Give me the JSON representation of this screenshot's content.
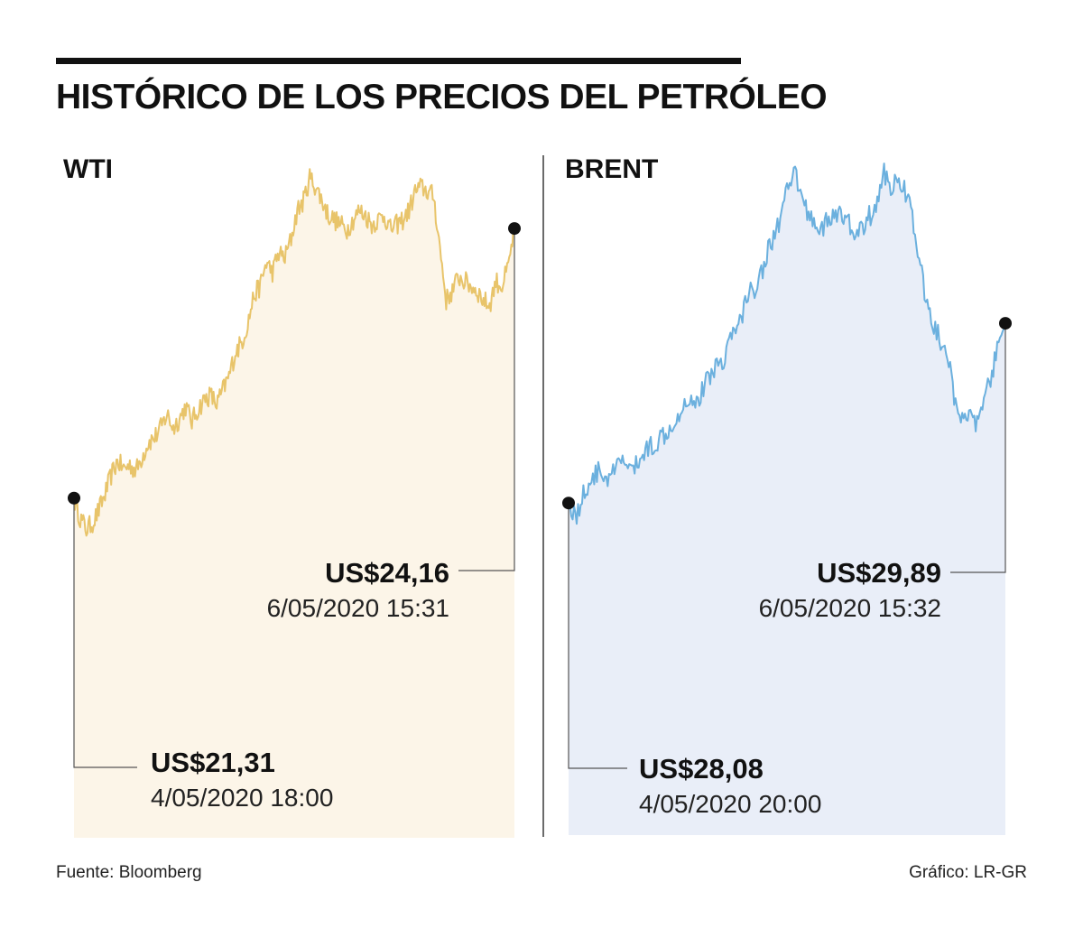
{
  "title": "HISTÓRICO DE LOS PRECIOS DEL PETRÓLEO",
  "footer": {
    "source": "Fuente: Bloomberg",
    "credit": "Gráfico: LR-GR"
  },
  "chart_data": [
    {
      "type": "area",
      "title": "WTI",
      "unit": "US$",
      "line_color": "#e8c46a",
      "fill_color": "#fcf5e8",
      "ylim": [
        19.8,
        24.8
      ],
      "start": {
        "label": "US$21,31",
        "date": "4/05/2020 18:00",
        "value": 21.31
      },
      "end": {
        "label": "US$24,16",
        "date": "6/05/2020 15:31",
        "value": 24.16
      },
      "values": [
        21.31,
        21.1,
        20.98,
        21.05,
        21.18,
        21.35,
        21.55,
        21.7,
        21.62,
        21.66,
        21.6,
        21.75,
        21.9,
        21.95,
        22.05,
        22.2,
        22.05,
        22.15,
        22.28,
        22.12,
        22.25,
        22.35,
        22.4,
        22.3,
        22.45,
        22.6,
        22.85,
        22.95,
        23.15,
        23.45,
        23.55,
        23.8,
        23.7,
        23.9,
        23.85,
        24.05,
        24.35,
        24.45,
        24.7,
        24.6,
        24.45,
        24.3,
        24.25,
        24.2,
        24.15,
        24.25,
        24.35,
        24.3,
        24.2,
        24.25,
        24.3,
        24.15,
        24.2,
        24.25,
        24.35,
        24.55,
        24.6,
        24.55,
        24.5,
        23.95,
        23.4,
        23.5,
        23.65,
        23.6,
        23.55,
        23.5,
        23.4,
        23.35,
        23.6,
        23.55,
        23.75,
        24.16
      ]
    },
    {
      "type": "area",
      "title": "BRENT",
      "unit": "US$",
      "line_color": "#6bb0de",
      "fill_color": "#e9eef8",
      "ylim": [
        26.6,
        31.6
      ],
      "start": {
        "label": "US$28,08",
        "date": "4/05/2020 20:00",
        "value": 28.08
      },
      "end": {
        "label": "US$29,89",
        "date": "6/05/2020 15:32",
        "value": 29.89
      },
      "values": [
        28.08,
        27.95,
        28.2,
        28.35,
        28.4,
        28.3,
        28.45,
        28.5,
        28.4,
        28.55,
        28.65,
        28.7,
        28.8,
        28.9,
        29.05,
        29.15,
        29.1,
        29.3,
        29.45,
        29.5,
        29.75,
        29.85,
        30.15,
        30.25,
        30.45,
        30.7,
        30.9,
        31.2,
        31.4,
        31.1,
        30.95,
        30.85,
        30.9,
        31.0,
        30.95,
        30.85,
        30.8,
        30.95,
        31.05,
        31.4,
        31.25,
        31.35,
        31.15,
        30.7,
        30.2,
        29.9,
        29.7,
        29.5,
        28.95,
        29.05,
        28.85,
        28.95,
        29.3,
        29.6,
        29.89
      ]
    }
  ]
}
